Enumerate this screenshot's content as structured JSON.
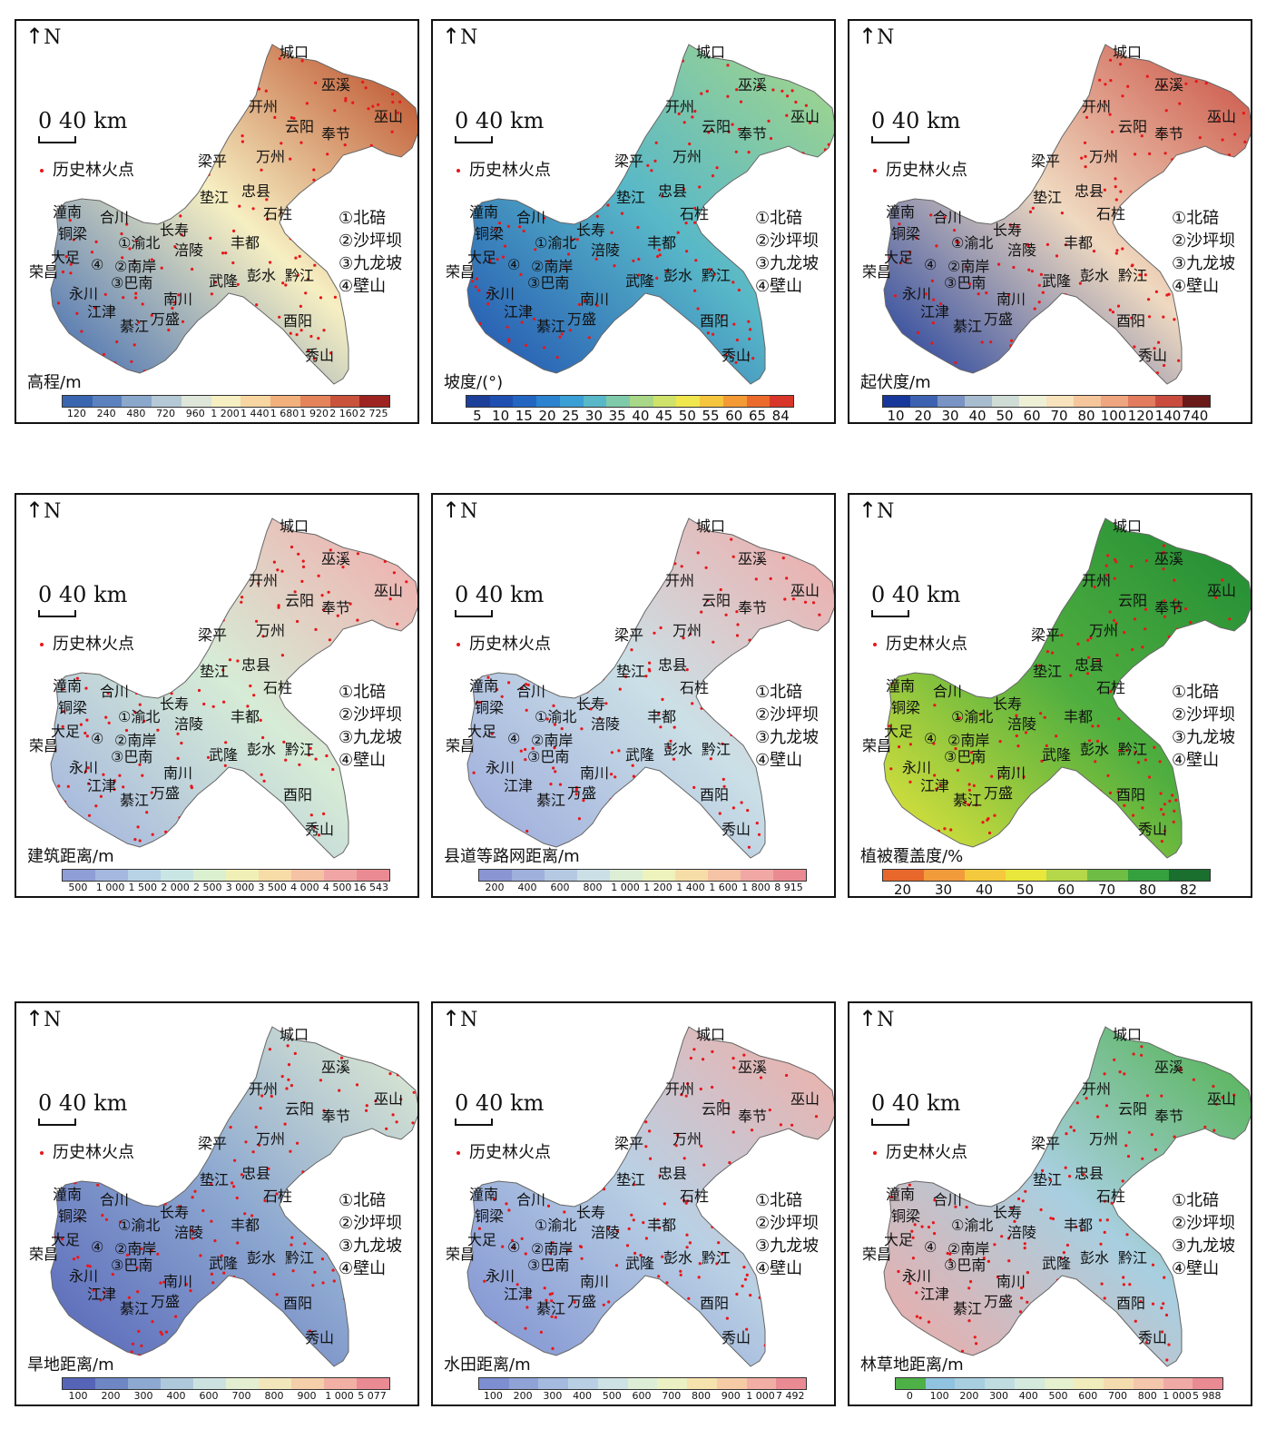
{
  "north_label": "N",
  "scale_label": "0  40 km",
  "fire_label": "历史林火点",
  "district_legend": [
    "①北碚",
    "②沙坪坝",
    "③九龙坡",
    "④壁山"
  ],
  "place_labels": [
    "城口",
    "巫溪",
    "开州",
    "云阳",
    "巫山",
    "奉节",
    "梁平",
    "万州",
    "垫江",
    "忠县",
    "潼南",
    "合川",
    "长寿",
    "石柱",
    "铜梁",
    "①渝北",
    "涪陵",
    "丰都",
    "大足",
    "④",
    "②南岸",
    "荣昌",
    "③巴南",
    "武隆",
    "彭水",
    "黔江",
    "永川",
    "南川",
    "江津",
    "万盛",
    "酉阳",
    "綦江",
    "秀山"
  ],
  "panels": [
    {
      "name": "高程/m",
      "ticks": [
        "120",
        "240",
        "480",
        "720",
        "960",
        "1 200",
        "1 440",
        "1 680",
        "1 920",
        "2 160",
        "2 725"
      ],
      "colors": [
        "#3a66b0",
        "#5b82be",
        "#8aa7cc",
        "#b4c8d6",
        "#dde6d8",
        "#f6efc2",
        "#f7d6a2",
        "#f2b07d",
        "#e4835a",
        "#c9523b",
        "#9c2320"
      ],
      "map": [
        "#3a66b0",
        "#f6efc2",
        "#b8441f"
      ]
    },
    {
      "name": "坡度/(°)",
      "ticks": [
        "5",
        "10",
        "15",
        "20",
        "25",
        "30",
        "35",
        "40",
        "45",
        "50",
        "55",
        "60",
        "65",
        "84"
      ],
      "colors": [
        "#1c3f9a",
        "#1f4fb0",
        "#2366c2",
        "#2b82cf",
        "#3a9fd4",
        "#58b8c8",
        "#7fcaa9",
        "#a8d887",
        "#cfe36b",
        "#f0e64d",
        "#f6c53e",
        "#f49a35",
        "#ec6a2c",
        "#d8362a"
      ],
      "map": [
        "#1f4fb0",
        "#58b8c8",
        "#a8d887"
      ]
    },
    {
      "name": "起伏度/m",
      "ticks": [
        "10",
        "20",
        "30",
        "40",
        "50",
        "60",
        "70",
        "80",
        "100",
        "120",
        "140",
        "740"
      ],
      "colors": [
        "#17389a",
        "#3d62b2",
        "#7893c4",
        "#a8bccf",
        "#cfdcd6",
        "#eef0d6",
        "#f7e3bc",
        "#f5c69c",
        "#efa57f",
        "#e37b5e",
        "#c94b3e",
        "#6b1a1a"
      ],
      "map": [
        "#17389a",
        "#efd9c0",
        "#c94b3e"
      ]
    },
    {
      "name": "建筑距离/m",
      "ticks": [
        "500",
        "1 000",
        "1 500",
        "2 000",
        "2 500",
        "3 000",
        "3 500",
        "4 000",
        "4 500",
        "16 543"
      ],
      "colors": [
        "#8f9ed6",
        "#a5b8df",
        "#b8d3e6",
        "#c9e6e4",
        "#dbf0cf",
        "#f0f0b6",
        "#f7dca7",
        "#f5c2a4",
        "#f0a6a4",
        "#ea8b93"
      ],
      "map": [
        "#9fb0df",
        "#d6ecd6",
        "#f2a9aa"
      ]
    },
    {
      "name": "县道等路网距离/m",
      "ticks": [
        "200",
        "400",
        "600",
        "800",
        "1 000",
        "1 200",
        "1 400",
        "1 600",
        "1 800",
        "8 915"
      ],
      "colors": [
        "#8a96d3",
        "#9fb0dc",
        "#b5c9e3",
        "#cbe0e6",
        "#dceed5",
        "#eef2bd",
        "#f6dda8",
        "#f5c3a5",
        "#f1a8a5",
        "#ea8b93"
      ],
      "map": [
        "#9aa8dc",
        "#cbe0e6",
        "#f1a8a5"
      ]
    },
    {
      "name": "植被覆盖度/%",
      "ticks": [
        "20",
        "30",
        "40",
        "50",
        "60",
        "70",
        "80",
        "82"
      ],
      "colors": [
        "#e8682b",
        "#f29b3b",
        "#f5c93d",
        "#e9e73c",
        "#b5d74a",
        "#6fbd45",
        "#35a03e",
        "#1a6e2e"
      ],
      "map": [
        "#e9e73c",
        "#4fae3f",
        "#1f8a34"
      ]
    },
    {
      "name": "旱地距离/m",
      "ticks": [
        "100",
        "200",
        "300",
        "400",
        "600",
        "700",
        "800",
        "900",
        "1 000",
        "5 077"
      ],
      "colors": [
        "#5664b8",
        "#6f86c4",
        "#8ea9d1",
        "#afc9dc",
        "#cce2e0",
        "#e4efd2",
        "#f2e7bb",
        "#f5cfa9",
        "#f2b0a5",
        "#ea8b93"
      ],
      "map": [
        "#5664b8",
        "#8ea9d1",
        "#e4efd2"
      ]
    },
    {
      "name": "水田距离/m",
      "ticks": [
        "100",
        "200",
        "300",
        "400",
        "500",
        "600",
        "700",
        "800",
        "900",
        "1 000",
        "7 492"
      ],
      "colors": [
        "#7d8ed1",
        "#8fa3d7",
        "#a4badf",
        "#b9d0e4",
        "#cde2e4",
        "#dcefd6",
        "#ecf1c3",
        "#f5e2ad",
        "#f5cba6",
        "#f1aea5",
        "#ea8b93"
      ],
      "map": [
        "#7d8ed1",
        "#b9d0e4",
        "#f1aea5"
      ]
    },
    {
      "name": "林草地距离/m",
      "ticks": [
        "0",
        "100",
        "200",
        "300",
        "400",
        "500",
        "600",
        "700",
        "800",
        "1 000",
        "5 988"
      ],
      "colors": [
        "#4db148",
        "#8fc3df",
        "#a8cfe0",
        "#bfdde1",
        "#d3eadd",
        "#e5f0cf",
        "#f1ecbb",
        "#f5dcaf",
        "#f4c6ab",
        "#f0aaa6",
        "#ea8b93"
      ],
      "map": [
        "#f0aaa6",
        "#a8cfe0",
        "#4db148"
      ]
    }
  ]
}
